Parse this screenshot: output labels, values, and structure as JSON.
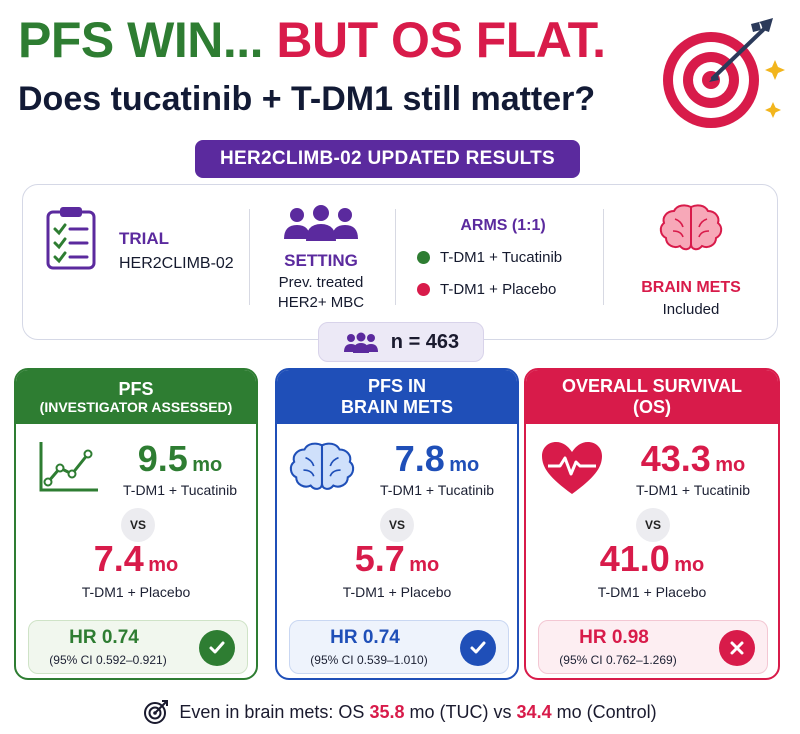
{
  "header": {
    "headline_part1": "PFS WIN...",
    "headline_part2": "BUT OS FLAT.",
    "subhead": "Does tucatinib + T-DM1 still matter?",
    "banner": "HER2CLIMB-02 UPDATED RESULTS",
    "icon": "target-with-arrow-icon"
  },
  "info": {
    "trial": {
      "label": "TRIAL",
      "value": "HER2CLIMB-02",
      "icon": "clipboard-checklist-icon"
    },
    "setting": {
      "label": "SETTING",
      "line1": "Prev. treated",
      "line2": "HER2+ MBC",
      "icon": "people-group-icon"
    },
    "arms": {
      "label": "ARMS (1:1)",
      "items": [
        {
          "label": "T-DM1 + Tucatinib",
          "color": "#2e7d32"
        },
        {
          "label": "T-DM1 + Placebo",
          "color": "#d81b4a"
        }
      ]
    },
    "brain": {
      "label": "BRAIN METS",
      "value": "Included",
      "icon": "brain-icon"
    },
    "n": "n = 463"
  },
  "panels": [
    {
      "title1": "PFS",
      "title2": "(INVESTIGATOR ASSESSED)",
      "color": "#2e7d32",
      "icon": "line-chart-icon",
      "value1": "9.5",
      "unit": "mo",
      "arm1": "T-DM1 + Tucatinib",
      "vs": "VS",
      "value2": "7.4",
      "arm2": "T-DM1 + Placebo",
      "hr": "HR 0.74",
      "ci": "(95% CI 0.592–0.921)",
      "status_icon": "check-icon"
    },
    {
      "title1": "PFS IN",
      "title2": "BRAIN METS",
      "color": "#1f4fb8",
      "icon": "brain-icon",
      "value1": "7.8",
      "unit": "mo",
      "arm1": "T-DM1 + Tucatinib",
      "vs": "VS",
      "value2": "5.7",
      "arm2": "T-DM1 + Placebo",
      "hr": "HR 0.74",
      "ci": "(95% CI 0.539–1.010)",
      "status_icon": "check-icon"
    },
    {
      "title1": "OVERALL SURVIVAL",
      "title2": "(OS)",
      "color": "#d81b4a",
      "icon": "heart-pulse-icon",
      "value1": "43.3",
      "unit": "mo",
      "arm1": "T-DM1 + Tucatinib",
      "vs": "VS",
      "value2": "41.0",
      "arm2": "T-DM1 + Placebo",
      "hr": "HR 0.98",
      "ci": "(95% CI 0.762–1.269)",
      "status_icon": "x-icon"
    }
  ],
  "footer": {
    "icon": "target-icon",
    "text1": "Even in brain mets: OS",
    "val1": "35.8",
    "text2": "mo (TUC) vs",
    "val2": "34.4",
    "text3": "mo (Control)"
  }
}
